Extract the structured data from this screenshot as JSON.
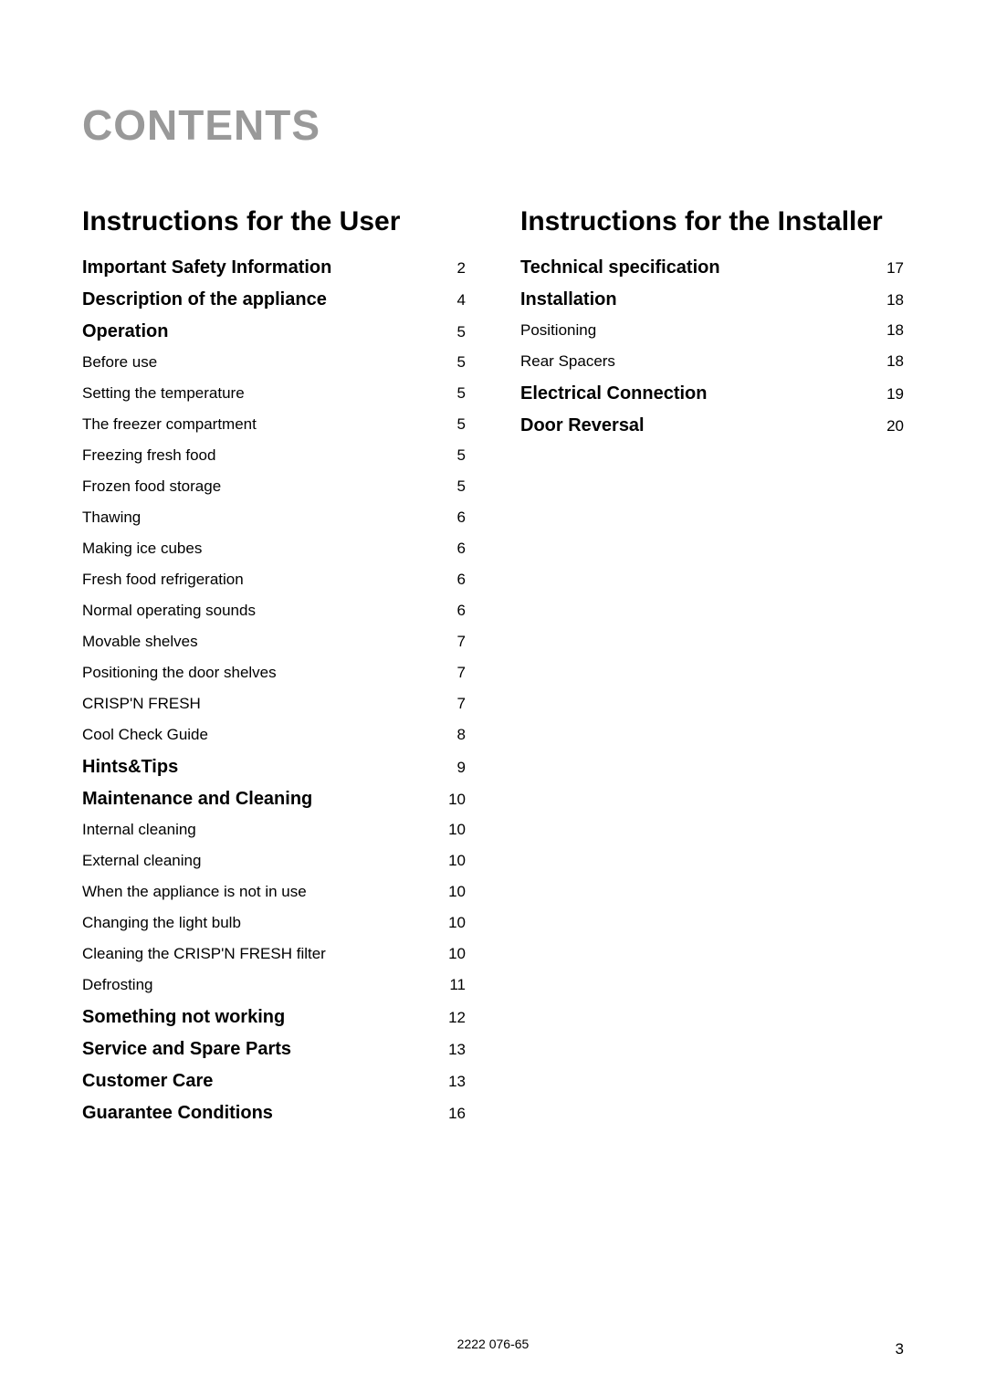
{
  "main_title": "CONTENTS",
  "page": {
    "background_color": "#ffffff",
    "title_color": "#999999",
    "text_color": "#000000",
    "title_fontsize": 46,
    "section_fontsize": 30,
    "bold_row_fontsize": 20,
    "row_fontsize": 17
  },
  "sections": [
    {
      "title": "Instructions for the User",
      "items": [
        {
          "label": "Important Safety Information",
          "page": "2",
          "bold": true
        },
        {
          "label": "Description of the appliance",
          "page": "4",
          "bold": true
        },
        {
          "label": "Operation",
          "page": "5",
          "bold": true
        },
        {
          "label": "Before use",
          "page": "5",
          "bold": false
        },
        {
          "label": "Setting the temperature",
          "page": "5",
          "bold": false
        },
        {
          "label": "The freezer compartment",
          "page": "5",
          "bold": false
        },
        {
          "label": "Freezing fresh food",
          "page": "5",
          "bold": false
        },
        {
          "label": "Frozen food storage",
          "page": "5",
          "bold": false
        },
        {
          "label": "Thawing",
          "page": "6",
          "bold": false
        },
        {
          "label": "Making ice cubes",
          "page": "6",
          "bold": false
        },
        {
          "label": "Fresh food refrigeration",
          "page": "6",
          "bold": false
        },
        {
          "label": "Normal operating sounds",
          "page": "6",
          "bold": false
        },
        {
          "label": "Movable shelves",
          "page": "7",
          "bold": false
        },
        {
          "label": "Positioning the door shelves",
          "page": "7",
          "bold": false
        },
        {
          "label": "CRISP'N FRESH",
          "page": "7",
          "bold": false
        },
        {
          "label": "Cool Check Guide",
          "page": "8",
          "bold": false
        },
        {
          "label": "Hints&Tips",
          "page": "9",
          "bold": true
        },
        {
          "label": "Maintenance and Cleaning",
          "page": "10",
          "bold": true
        },
        {
          "label": "Internal cleaning",
          "page": "10",
          "bold": false
        },
        {
          "label": "External cleaning",
          "page": "10",
          "bold": false
        },
        {
          "label": "When the appliance is not in use",
          "page": "10",
          "bold": false
        },
        {
          "label": "Changing the light bulb",
          "page": "10",
          "bold": false
        },
        {
          "label": "Cleaning the CRISP'N FRESH filter",
          "page": "10",
          "bold": false
        },
        {
          "label": "Defrosting",
          "page": "11",
          "bold": false
        },
        {
          "label": "Something not working",
          "page": "12",
          "bold": true
        },
        {
          "label": "Service and Spare Parts",
          "page": "13",
          "bold": true
        },
        {
          "label": "Customer Care",
          "page": "13",
          "bold": true
        },
        {
          "label": "Guarantee Conditions",
          "page": "16",
          "bold": true
        }
      ]
    },
    {
      "title": "Instructions for the Installer",
      "items": [
        {
          "label": "Technical specification",
          "page": "17",
          "bold": true
        },
        {
          "label": "Installation",
          "page": "18",
          "bold": true
        },
        {
          "label": "Positioning",
          "page": "18",
          "bold": false
        },
        {
          "label": "Rear Spacers",
          "page": "18",
          "bold": false
        },
        {
          "label": "Electrical Connection",
          "page": "19",
          "bold": true
        },
        {
          "label": "Door Reversal",
          "page": "20",
          "bold": true
        }
      ]
    }
  ],
  "footer": {
    "reference": "2222 076-65",
    "page_number": "3"
  }
}
